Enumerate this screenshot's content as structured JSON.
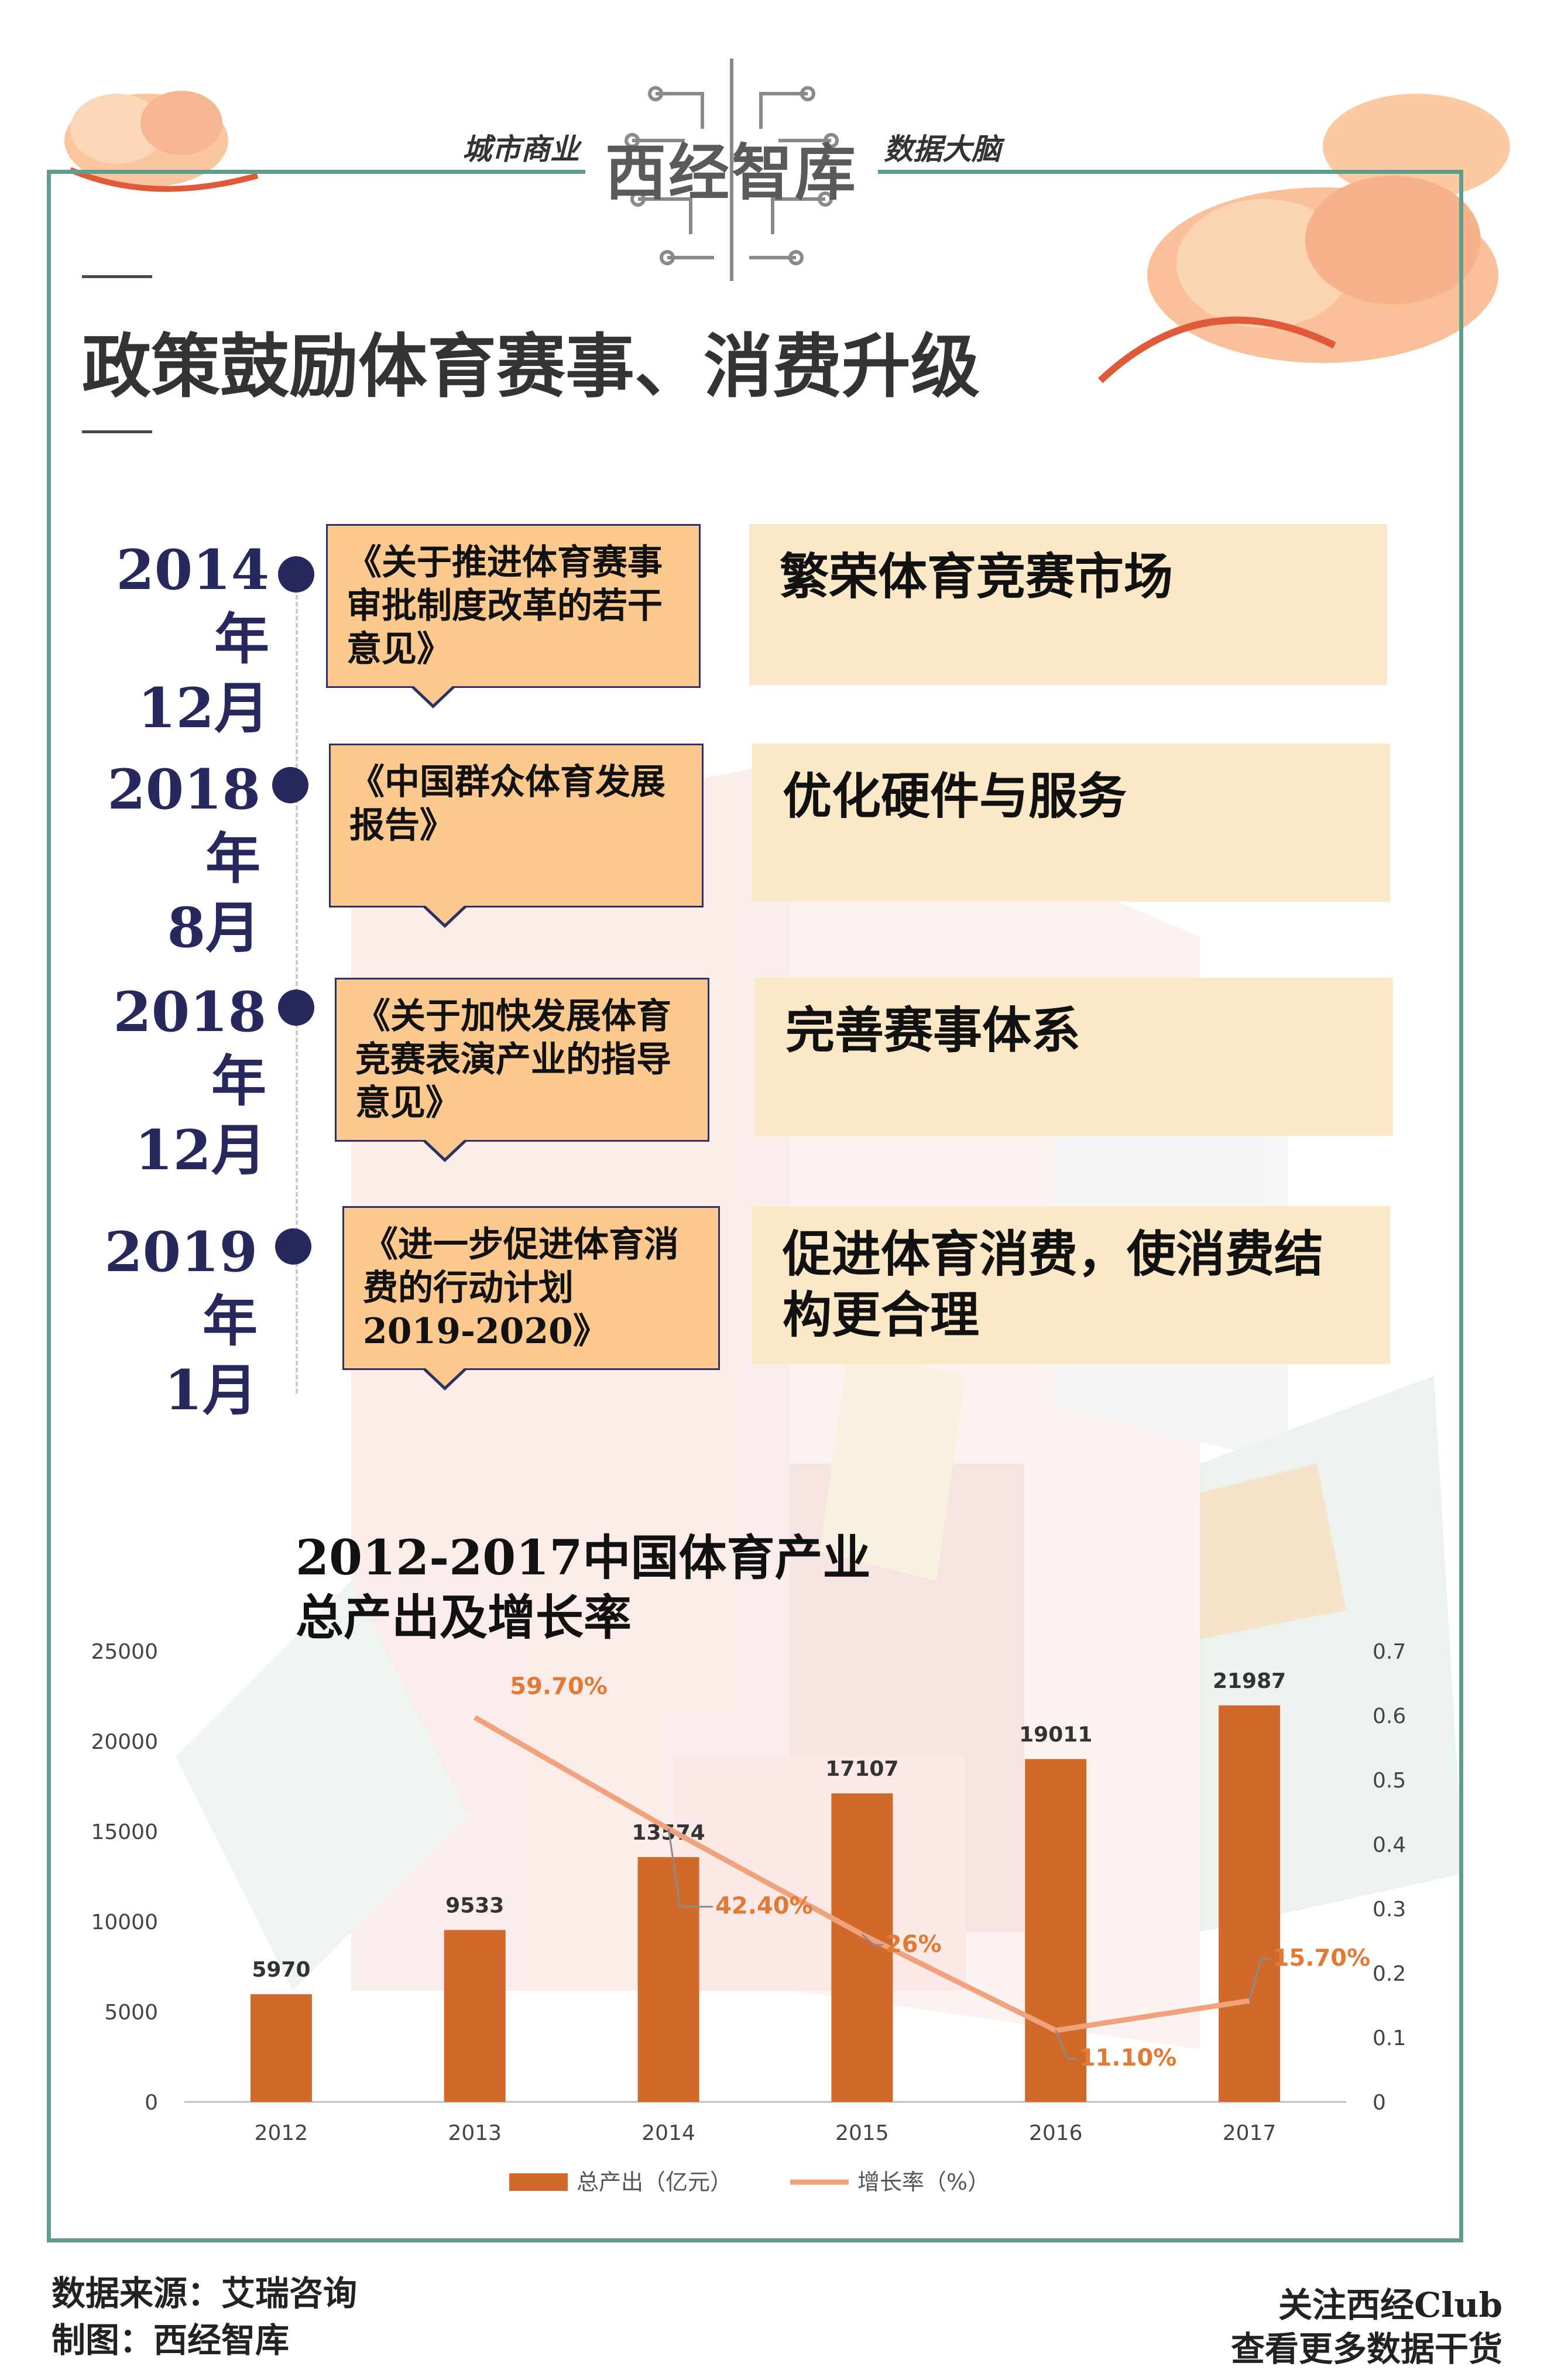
{
  "header": {
    "left_tag": "城市商业",
    "brand": "西经智库",
    "right_tag": "数据大脑"
  },
  "page_title": "政策鼓励体育赛事、消费升级",
  "timeline": [
    {
      "date": "2014年\n12月",
      "document": "《关于推进体育赛事\n审批制度改革的若干\n意见》",
      "goal": "繁荣体育竞赛市场"
    },
    {
      "date": "2018年\n8月",
      "document": "《中国群众体育发展\n报告》",
      "goal": "优化硬件与服务"
    },
    {
      "date": "2018年\n12月",
      "document": "《关于加快发展体育\n竞赛表演产业的指导\n意见》",
      "goal": "完善赛事体系"
    },
    {
      "date": "2019年\n1月",
      "document": "《进一步促进体育消\n费的行动计划\n2019-2020》",
      "goal": "促进体育消费，使消费结\n构更合理"
    }
  ],
  "chart_data": {
    "type": "bar",
    "title": "2012-2017中国体育产业\n总产出及增长率",
    "categories": [
      "2012",
      "2013",
      "2014",
      "2015",
      "2016",
      "2017"
    ],
    "series": [
      {
        "name": "总产出（亿元）",
        "type": "bar",
        "axis": "left",
        "values": [
          5970,
          9533,
          13574,
          17107,
          19011,
          21987
        ],
        "color": "#d0692a"
      },
      {
        "name": "增长率（%）",
        "type": "line",
        "axis": "right",
        "values": [
          null,
          0.597,
          0.424,
          0.26,
          0.111,
          0.157
        ],
        "labels": [
          "",
          "59.70%",
          "42.40%",
          "26%",
          "11.10%",
          "15.70%"
        ],
        "color": "#f0a27c"
      }
    ],
    "y_left": {
      "min": 0,
      "max": 25000,
      "ticks": [
        0,
        5000,
        10000,
        15000,
        20000,
        25000
      ]
    },
    "y_right": {
      "min": 0,
      "max": 0.7,
      "ticks": [
        "0",
        "0.1",
        "0.2",
        "0.3",
        "0.4",
        "0.5",
        "0.6",
        "0.7"
      ]
    },
    "legend_position": "bottom",
    "grid": false
  },
  "footer": {
    "source": "数据来源：艾瑞咨询",
    "made_by": "制图：西经智库",
    "follow_line1": "关注西经Club",
    "follow_line2": "查看更多数据干货"
  }
}
